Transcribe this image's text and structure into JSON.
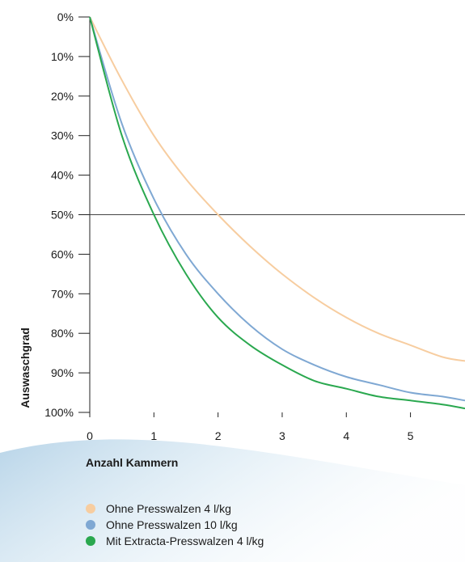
{
  "chart_data": {
    "type": "line",
    "title": "",
    "xlabel": "Anzahl Kammern",
    "ylabel": "Auswaschgrad",
    "x_ticks": [
      "0",
      "1",
      "2",
      "3",
      "4",
      "5"
    ],
    "y_ticks": [
      "0%",
      "10%",
      "20%",
      "30%",
      "40%",
      "50%",
      "60%",
      "70%",
      "80%",
      "90%",
      "100%"
    ],
    "xlim": [
      0,
      5.85
    ],
    "ylim": [
      0,
      100
    ],
    "y_inverted": true,
    "grid": false,
    "reference_line": {
      "y": 50
    },
    "legend_position": "bottom",
    "series": [
      {
        "name": "Ohne Presswalzen 4 l/kg",
        "color": "#f7cda0",
        "x": [
          0,
          0.5,
          1,
          1.5,
          2,
          2.5,
          3,
          3.5,
          4,
          4.5,
          5,
          5.5,
          5.85
        ],
        "y": [
          0,
          16,
          30,
          41,
          50,
          58,
          65,
          71,
          76,
          80,
          83,
          86,
          87
        ]
      },
      {
        "name": "Ohne Presswalzen 10 l/kg",
        "color": "#7fa8d3",
        "x": [
          0,
          0.5,
          1,
          1.5,
          2,
          2.5,
          3,
          3.5,
          4,
          4.5,
          5,
          5.5,
          5.85
        ],
        "y": [
          0,
          27,
          46,
          60,
          70,
          78,
          84,
          88,
          91,
          93,
          95,
          96,
          97
        ]
      },
      {
        "name": "Mit Extracta-Presswalzen 4 l/kg",
        "color": "#2aa84f",
        "x": [
          0,
          0.5,
          1,
          1.5,
          2,
          2.5,
          3,
          3.5,
          4,
          4.5,
          5,
          5.5,
          5.85
        ],
        "y": [
          0,
          30,
          50,
          65,
          76,
          83,
          88,
          92,
          94,
          96,
          97,
          98,
          99
        ]
      }
    ]
  }
}
